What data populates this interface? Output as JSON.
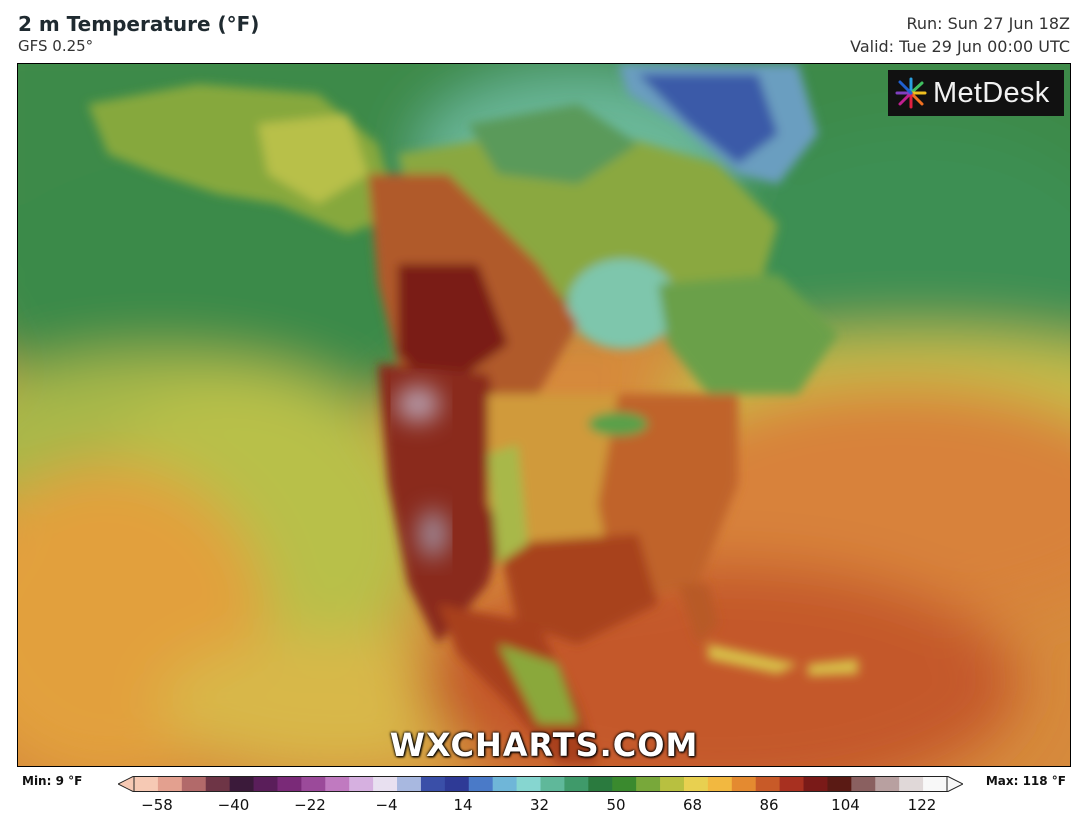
{
  "header": {
    "title": "2 m Temperature (°F)",
    "model": "GFS 0.25°",
    "run": "Run: Sun 27 Jun 18Z",
    "valid": "Valid: Tue 29 Jun 00:00 UTC"
  },
  "logo": {
    "text": "MetDesk"
  },
  "watermark": "WXCHARTS.COM",
  "legend": {
    "min_label": "Min: 9 °F",
    "max_label": "Max: 118 °F",
    "ticks": [
      "−58",
      "−40",
      "−22",
      "−4",
      "14",
      "32",
      "50",
      "68",
      "86",
      "104",
      "122"
    ],
    "scale_colors": [
      "#f6c9b4",
      "#e3a08f",
      "#b26a6a",
      "#6e3546",
      "#3b1a3a",
      "#5a1e5a",
      "#7a2a78",
      "#9b4a9a",
      "#c07ac0",
      "#d6b0e0",
      "#e8e0f0",
      "#a8b8e0",
      "#3a4fa8",
      "#2e3a96",
      "#4a7ac8",
      "#6fb6d8",
      "#86d6d0",
      "#5fb89a",
      "#3f9a6a",
      "#2a7a3e",
      "#3a8a2e",
      "#78a83a",
      "#b8c040",
      "#e8d050",
      "#f2b840",
      "#e48a30",
      "#c85a28",
      "#a83020",
      "#7a1a18",
      "#5a1a14",
      "#8a6060",
      "#b8a0a0",
      "#e0d8d8",
      "#f8f8f8"
    ]
  }
}
